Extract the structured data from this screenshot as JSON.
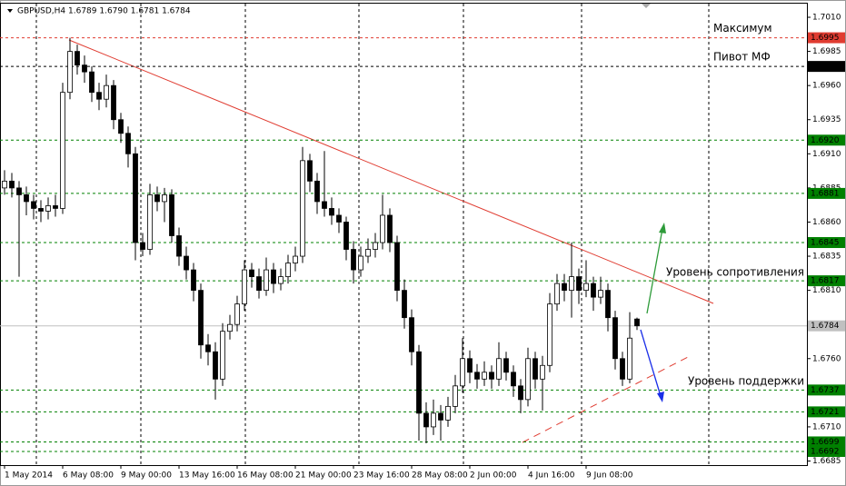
{
  "chart_data": {
    "type": "candlestick",
    "title": "GBPUSD,H4  1.6789 1.6790 1.6781 1.6784",
    "ylim": [
      1.6682,
      1.7016
    ],
    "yticks": [
      {
        "value": 1.701,
        "label": "1.7010"
      },
      1.6985,
      {
        "value": 1.696,
        "label": "1.6960"
      },
      1.6935,
      {
        "value": 1.691,
        "label": "1.6910"
      },
      1.6885,
      {
        "value": 1.686,
        "label": "1.6860"
      },
      1.6835,
      {
        "value": 1.681,
        "label": "1.6810"
      },
      {
        "value": 1.676,
        "label": "1.6760"
      },
      {
        "value": 1.671,
        "label": "1.6710"
      },
      1.6685
    ],
    "categories": [
      "1 May 2014",
      null,
      null,
      null,
      null,
      null,
      null,
      null,
      "6 May 08:00",
      null,
      null,
      null,
      null,
      null,
      null,
      null,
      "9 May 00:00",
      null,
      null,
      null,
      null,
      null,
      null,
      null,
      "13 May 16:00",
      null,
      null,
      null,
      null,
      null,
      null,
      null,
      "16 May 08:00",
      null,
      null,
      null,
      null,
      null,
      null,
      null,
      "21 May 00:00",
      null,
      null,
      null,
      null,
      null,
      null,
      null,
      "23 May 16:00",
      null,
      null,
      null,
      null,
      null,
      null,
      null,
      "28 May 08:00",
      null,
      null,
      null,
      null,
      null,
      null,
      null,
      "2 Jun 00:00",
      null,
      null,
      null,
      null,
      null,
      null,
      null,
      "4 Jun 16:00",
      null,
      null,
      null,
      null,
      null,
      null,
      null,
      "9 Jun 08:00",
      null,
      null,
      null,
      null,
      null,
      null,
      null
    ],
    "candles": [
      [
        1.6885,
        1.6898,
        1.688,
        1.689
      ],
      [
        1.689,
        1.6896,
        1.6878,
        1.6885
      ],
      [
        1.6885,
        1.689,
        1.682,
        1.688
      ],
      [
        1.688,
        1.6886,
        1.6865,
        1.6875
      ],
      [
        1.6875,
        1.688,
        1.6862,
        1.687
      ],
      [
        1.687,
        1.6876,
        1.686,
        1.6868
      ],
      [
        1.6868,
        1.6878,
        1.6862,
        1.6872
      ],
      [
        1.6872,
        1.688,
        1.6864,
        1.687
      ],
      [
        1.687,
        1.6962,
        1.6866,
        1.6955
      ],
      [
        1.6955,
        1.6995,
        1.695,
        1.6985
      ],
      [
        1.6985,
        1.699,
        1.6968,
        1.6975
      ],
      [
        1.6975,
        1.6982,
        1.6962,
        1.697
      ],
      [
        1.697,
        1.6974,
        1.6948,
        1.6955
      ],
      [
        1.6955,
        1.6962,
        1.6942,
        1.695
      ],
      [
        1.695,
        1.6968,
        1.6944,
        1.696
      ],
      [
        1.696,
        1.6964,
        1.6928,
        1.6935
      ],
      [
        1.6935,
        1.694,
        1.6918,
        1.6925
      ],
      [
        1.6925,
        1.693,
        1.69,
        1.691
      ],
      [
        1.691,
        1.6915,
        1.6832,
        1.6845
      ],
      [
        1.6845,
        1.6852,
        1.6835,
        1.684
      ],
      [
        1.684,
        1.6888,
        1.6836,
        1.688
      ],
      [
        1.688,
        1.6886,
        1.6868,
        1.6875
      ],
      [
        1.6875,
        1.6885,
        1.686,
        1.688
      ],
      [
        1.688,
        1.6884,
        1.6845,
        1.685
      ],
      [
        1.685,
        1.6856,
        1.6828,
        1.6835
      ],
      [
        1.6835,
        1.6842,
        1.6818,
        1.6825
      ],
      [
        1.6825,
        1.683,
        1.6802,
        1.681
      ],
      [
        1.681,
        1.6815,
        1.676,
        1.677
      ],
      [
        1.677,
        1.6778,
        1.6755,
        1.6765
      ],
      [
        1.6765,
        1.6772,
        1.673,
        1.6745
      ],
      [
        1.6745,
        1.6786,
        1.674,
        1.678
      ],
      [
        1.678,
        1.6792,
        1.6774,
        1.6785
      ],
      [
        1.6785,
        1.6806,
        1.678,
        1.68
      ],
      [
        1.68,
        1.6832,
        1.6795,
        1.6825
      ],
      [
        1.6825,
        1.683,
        1.6812,
        1.682
      ],
      [
        1.682,
        1.6826,
        1.6804,
        1.681
      ],
      [
        1.681,
        1.6834,
        1.6806,
        1.6825
      ],
      [
        1.6825,
        1.683,
        1.6808,
        1.6815
      ],
      [
        1.6815,
        1.6826,
        1.681,
        1.682
      ],
      [
        1.682,
        1.6836,
        1.6815,
        1.683
      ],
      [
        1.683,
        1.6842,
        1.6824,
        1.6835
      ],
      [
        1.6835,
        1.6915,
        1.683,
        1.6905
      ],
      [
        1.6905,
        1.691,
        1.6882,
        1.689
      ],
      [
        1.689,
        1.6896,
        1.6866,
        1.6875
      ],
      [
        1.6875,
        1.6912,
        1.6864,
        1.687
      ],
      [
        1.687,
        1.6878,
        1.6858,
        1.6865
      ],
      [
        1.6865,
        1.687,
        1.6852,
        1.686
      ],
      [
        1.686,
        1.6864,
        1.6832,
        1.684
      ],
      [
        1.684,
        1.6846,
        1.6815,
        1.6825
      ],
      [
        1.6825,
        1.6842,
        1.682,
        1.6835
      ],
      [
        1.6835,
        1.6848,
        1.683,
        1.684
      ],
      [
        1.684,
        1.6852,
        1.6834,
        1.6845
      ],
      [
        1.6845,
        1.688,
        1.684,
        1.6865
      ],
      [
        1.6865,
        1.687,
        1.6838,
        1.6845
      ],
      [
        1.6845,
        1.685,
        1.6802,
        1.681
      ],
      [
        1.681,
        1.6818,
        1.6782,
        1.679
      ],
      [
        1.679,
        1.6796,
        1.6755,
        1.6765
      ],
      [
        1.6765,
        1.677,
        1.67,
        1.672
      ],
      [
        1.672,
        1.6728,
        1.6698,
        1.671
      ],
      [
        1.671,
        1.673,
        1.6704,
        1.672
      ],
      [
        1.672,
        1.6726,
        1.67,
        1.6715
      ],
      [
        1.6715,
        1.6732,
        1.671,
        1.6725
      ],
      [
        1.6725,
        1.6748,
        1.672,
        1.674
      ],
      [
        1.674,
        1.6775,
        1.6735,
        1.676
      ],
      [
        1.676,
        1.6766,
        1.6742,
        1.675
      ],
      [
        1.675,
        1.6756,
        1.6738,
        1.6745
      ],
      [
        1.6745,
        1.6758,
        1.674,
        1.675
      ],
      [
        1.675,
        1.6755,
        1.6738,
        1.6745
      ],
      [
        1.6745,
        1.6772,
        1.674,
        1.676
      ],
      [
        1.676,
        1.6765,
        1.6744,
        1.675
      ],
      [
        1.675,
        1.6755,
        1.6732,
        1.674
      ],
      [
        1.674,
        1.6745,
        1.672,
        1.673
      ],
      [
        1.673,
        1.6768,
        1.6725,
        1.676
      ],
      [
        1.676,
        1.6765,
        1.6738,
        1.6745
      ],
      [
        1.6745,
        1.6762,
        1.6722,
        1.6755
      ],
      [
        1.6755,
        1.6808,
        1.675,
        1.68
      ],
      [
        1.68,
        1.6822,
        1.6795,
        1.6815
      ],
      [
        1.6815,
        1.6822,
        1.6802,
        1.681
      ],
      [
        1.681,
        1.6845,
        1.679,
        1.682
      ],
      [
        1.682,
        1.6826,
        1.68,
        1.681
      ],
      [
        1.681,
        1.6832,
        1.6805,
        1.6815
      ],
      [
        1.6815,
        1.682,
        1.6795,
        1.6805
      ],
      [
        1.6805,
        1.682,
        1.68,
        1.681
      ],
      [
        1.681,
        1.6815,
        1.678,
        1.679
      ],
      [
        1.679,
        1.6795,
        1.6752,
        1.676
      ],
      [
        1.676,
        1.6765,
        1.674,
        1.6745
      ],
      [
        1.6745,
        1.6794,
        1.6742,
        1.6775
      ],
      [
        1.6789,
        1.679,
        1.6781,
        1.6784
      ]
    ],
    "levels": [
      {
        "value": 1.6995,
        "color": "#e03c31",
        "annotation": "Максимум"
      },
      {
        "value": 1.6974,
        "color": "#000000",
        "annotation": "Пивот МФ"
      },
      {
        "value": 1.692,
        "label": "1.6920",
        "color": "#008000"
      },
      {
        "value": 1.6881,
        "color": "#008000"
      },
      {
        "value": 1.6845,
        "color": "#008000"
      },
      {
        "value": 1.6817,
        "color": "#008000"
      },
      {
        "value": 1.6737,
        "color": "#008000"
      },
      {
        "value": 1.6721,
        "color": "#008000"
      },
      {
        "value": 1.6699,
        "color": "#008000"
      },
      {
        "value": 1.6692,
        "color": "#008000"
      }
    ],
    "last_price": 1.6784,
    "annotations": [
      "Уровень сопротивления",
      "Уровень поддержки"
    ]
  }
}
